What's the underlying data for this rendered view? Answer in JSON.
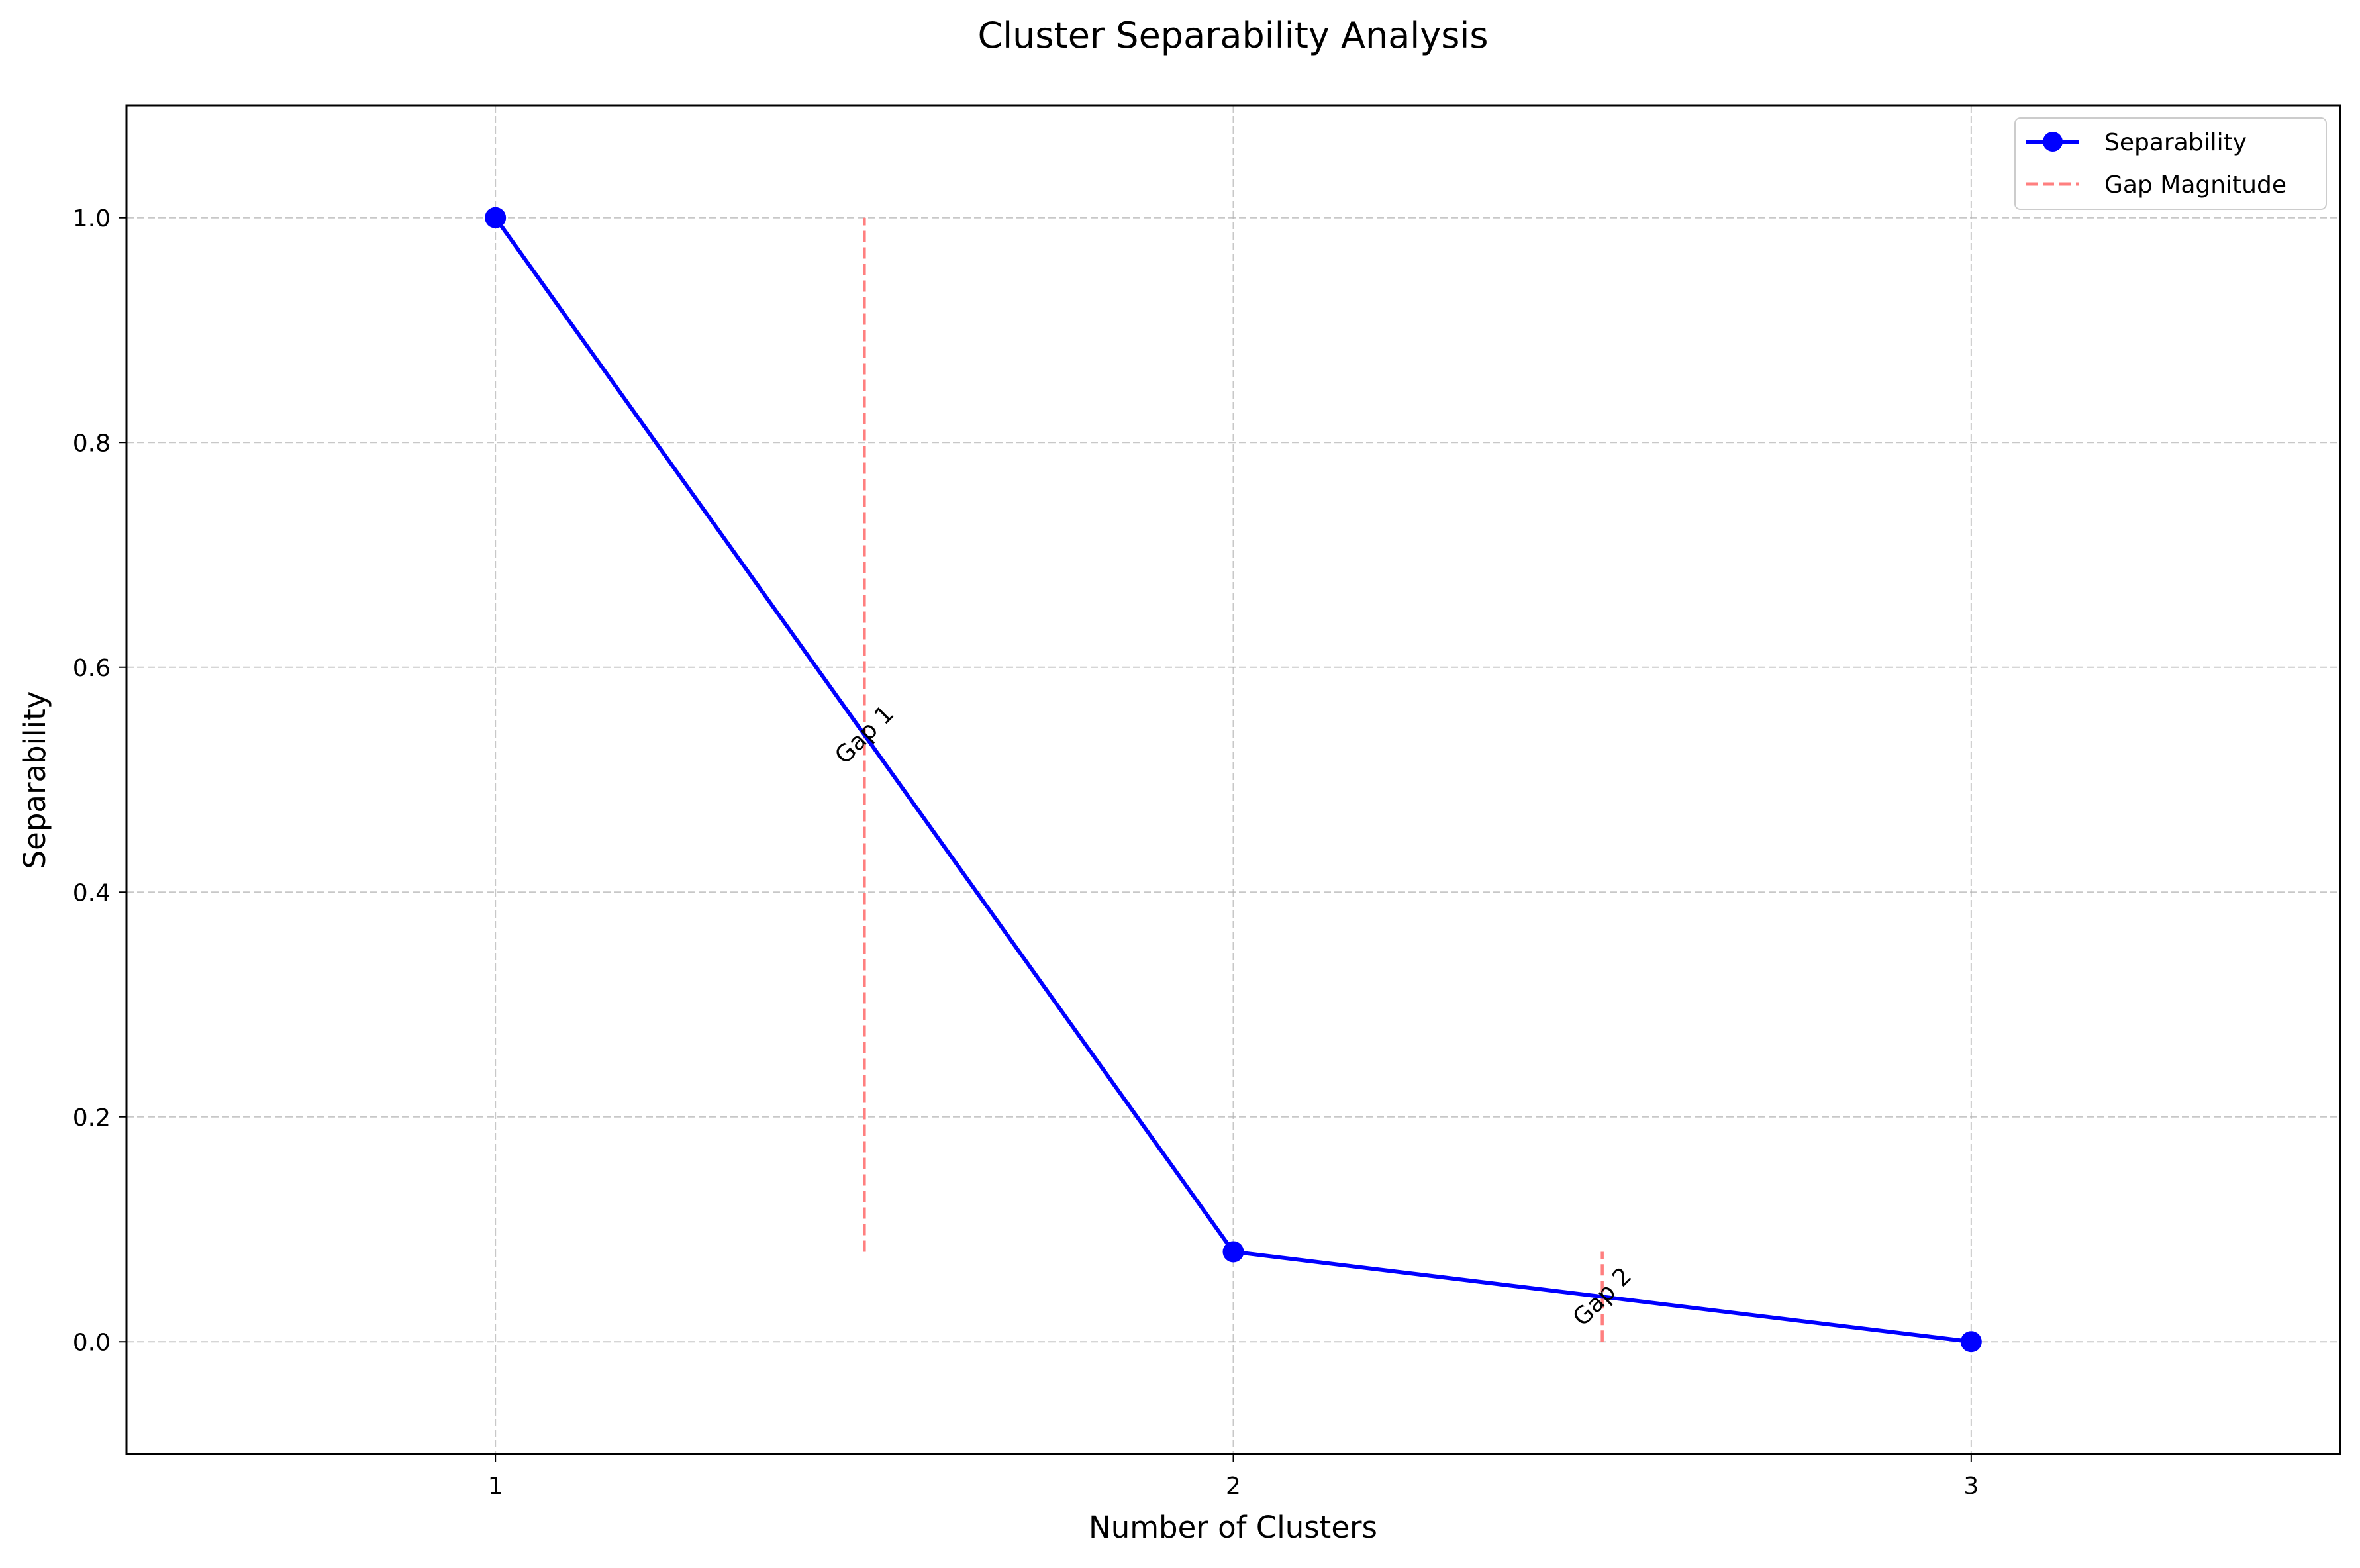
{
  "chart_data": {
    "type": "line",
    "title": "Cluster Separability Analysis",
    "xlabel": "Number of Clusters",
    "ylabel": "Separability",
    "xlim": [
      0.5,
      3.5
    ],
    "ylim": [
      -0.1,
      1.1
    ],
    "x_ticks": [
      1,
      2,
      3
    ],
    "y_ticks": [
      0.0,
      0.2,
      0.4,
      0.6,
      0.8,
      1.0
    ],
    "grid": true,
    "legend_position": "top-right",
    "series": [
      {
        "name": "Separability",
        "x": [
          1,
          2,
          3
        ],
        "y": [
          1.0,
          0.08,
          0.0
        ],
        "color": "#0000ff",
        "marker": "circle",
        "line_style": "solid"
      }
    ],
    "gaps": [
      {
        "label": "Gap 1",
        "x": 1.5,
        "y_start": 0.08,
        "y_end": 1.0
      },
      {
        "label": "Gap 2",
        "x": 2.5,
        "y_start": 0.0,
        "y_end": 0.08
      }
    ],
    "gap_series": {
      "name": "Gap Magnitude",
      "color": "#ff7f7f",
      "line_style": "dashed"
    }
  }
}
